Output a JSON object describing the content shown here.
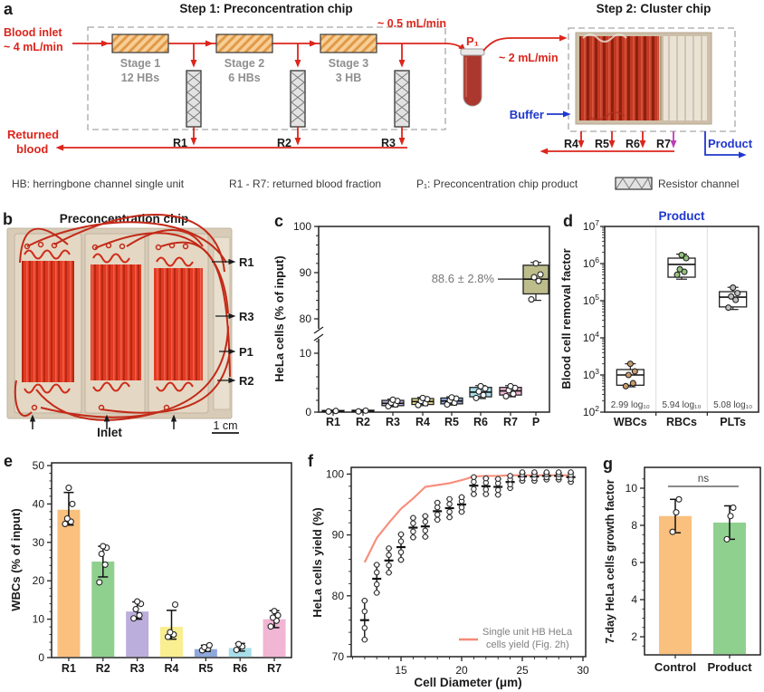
{
  "letters": {
    "a": "a",
    "b": "b",
    "c": "c",
    "d": "d",
    "e": "e",
    "f": "f",
    "g": "g"
  },
  "panel_a": {
    "step1_title": "Step 1: Preconcentration chip",
    "step2_title": "Step 2: Cluster chip",
    "blood_inlet": [
      "Blood inlet",
      "~ 4 mL/min"
    ],
    "flow_mid": "~ 0.5 mL/min",
    "p1_label": "P₁",
    "flow_p1": "~ 2 mL/min",
    "buffer_label": "Buffer",
    "product_label": "Product",
    "returned": [
      "Returned",
      "blood"
    ],
    "stages": [
      {
        "name": "Stage 1",
        "hbs": "12 HBs"
      },
      {
        "name": "Stage 2",
        "hbs": "6 HBs"
      },
      {
        "name": "Stage 3",
        "hbs": "3 HB"
      }
    ],
    "r_step1": [
      "R1",
      "R2",
      "R3"
    ],
    "r_step2": [
      "R4",
      "R5",
      "R6",
      "R7"
    ],
    "legend": {
      "hb": "HB: herringbone channel single unit",
      "r": "R1 - R7: returned blood fraction",
      "p1": "P₁: Preconcentration chip product",
      "resistor": "Resistor channel"
    }
  },
  "panel_b": {
    "title": "Preconcentration chip",
    "labels": [
      "R1",
      "R3",
      "P1",
      "R2"
    ],
    "inlet": "Inlet",
    "scalebar": "1 cm"
  },
  "chart_data": [
    {
      "id": "c",
      "type": "box",
      "ylabel": "HeLa cells (% of input)",
      "broken_axis": true,
      "ylim_lower": [
        0,
        12
      ],
      "ylim_upper": [
        78,
        100
      ],
      "yticks_lower": [
        0,
        10
      ],
      "yticks_upper": [
        80,
        90,
        100
      ],
      "categories": [
        "R1",
        "R2",
        "R3",
        "R4",
        "R5",
        "R6",
        "R7",
        "P"
      ],
      "colors": [
        "#9e9e9e",
        "#9e9e9e",
        "#BCAEDC",
        "#F2E88E",
        "#8FA8DC",
        "#A8DEEA",
        "#F0B6D4",
        "#BDBD8C"
      ],
      "boxes": [
        {
          "whislo": 0.05,
          "q1": 0.1,
          "med": 0.18,
          "q3": 0.28,
          "whishi": 0.35,
          "points": [
            0.1,
            0.2
          ]
        },
        {
          "whislo": 0.05,
          "q1": 0.1,
          "med": 0.2,
          "q3": 0.32,
          "whishi": 0.4,
          "points": [
            0.12,
            0.25
          ]
        },
        {
          "whislo": 0.9,
          "q1": 1.1,
          "med": 1.5,
          "q3": 2.0,
          "whishi": 2.2,
          "points": [
            1.0,
            1.3,
            1.6,
            1.9,
            2.1
          ]
        },
        {
          "whislo": 1.1,
          "q1": 1.3,
          "med": 1.8,
          "q3": 2.3,
          "whishi": 2.5,
          "points": [
            1.2,
            1.5,
            1.9,
            2.2,
            2.4
          ]
        },
        {
          "whislo": 1.2,
          "q1": 1.4,
          "med": 1.9,
          "q3": 2.4,
          "whishi": 2.6,
          "points": [
            1.3,
            1.6,
            2.0,
            2.3,
            2.5
          ]
        },
        {
          "whislo": 2.3,
          "q1": 2.6,
          "med": 3.4,
          "q3": 4.2,
          "whishi": 4.5,
          "points": [
            2.4,
            2.9,
            3.5,
            4.0,
            4.4
          ]
        },
        {
          "whislo": 2.6,
          "q1": 2.9,
          "med": 3.6,
          "q3": 4.2,
          "whishi": 4.5,
          "points": [
            2.7,
            3.1,
            3.7,
            4.1,
            4.4
          ]
        },
        {
          "whislo": 84.0,
          "q1": 85.4,
          "med": 88.6,
          "q3": 91.6,
          "whishi": 92.2,
          "points": [
            84.2,
            88.2,
            89.0,
            89.6,
            92.0
          ]
        }
      ],
      "annotation": {
        "text": "88.6 ± 2.8%",
        "target": "P",
        "value": 88.6
      }
    },
    {
      "id": "d",
      "type": "box-log",
      "title": "Product",
      "ylabel": "Blood cell removal factor",
      "ylim": [
        100,
        10000000
      ],
      "categories": [
        "WBCs",
        "RBCs",
        "PLTs"
      ],
      "boxes": [
        {
          "whislo": 480,
          "q1": 530,
          "med": 1000,
          "q3": 1400,
          "whishi": 2000,
          "points": [
            500,
            600,
            1000,
            1250,
            2000
          ],
          "point_color": "#C89A6A"
        },
        {
          "whislo": 380000,
          "q1": 430000,
          "med": 950000,
          "q3": 1400000,
          "whishi": 1800000,
          "points": [
            500000,
            600000,
            700000,
            1400000,
            1700000
          ],
          "point_color": "#93C47D"
        },
        {
          "whislo": 58000,
          "q1": 68000,
          "med": 125000,
          "q3": 175000,
          "whishi": 230000,
          "points": [
            65000,
            105000,
            130000,
            160000,
            225000
          ],
          "point_color": "#BFBFBF"
        }
      ],
      "annotations": [
        "2.99 log₁₀",
        "5.94 log₁₀",
        "5.08 log₁₀"
      ]
    },
    {
      "id": "e",
      "type": "bar",
      "ylabel": "WBCs (% of input)",
      "ylim": [
        0,
        50
      ],
      "yticks": [
        0,
        10,
        20,
        30,
        40,
        50
      ],
      "categories": [
        "R1",
        "R2",
        "R3",
        "R4",
        "R5",
        "R6",
        "R7"
      ],
      "values": [
        38.5,
        25,
        12,
        8,
        2.2,
        2.5,
        10
      ],
      "errors_lo": [
        34.5,
        21,
        10,
        4.8,
        1.6,
        1.7,
        7.8
      ],
      "errors_hi": [
        43,
        29,
        14.5,
        12.3,
        3.2,
        3.7,
        12.2
      ],
      "points": [
        [
          34.8,
          35.4,
          36.2,
          40,
          44.2
        ],
        [
          19.6,
          24.2,
          27,
          28.6,
          29
        ],
        [
          10.2,
          11,
          12.6,
          14,
          14.6
        ],
        [
          5.4,
          6,
          6.6,
          13.8
        ],
        [
          1.9,
          2.3,
          2.7,
          3.2
        ],
        [
          2,
          2.9,
          3.5
        ],
        [
          8.1,
          9.6,
          10.4,
          11,
          12.1
        ]
      ],
      "colors": [
        "#FAC07E",
        "#8FD08F",
        "#BCAEDC",
        "#F9EE90",
        "#8FA8DC",
        "#A8DEEA",
        "#F0B6D4"
      ]
    },
    {
      "id": "f",
      "type": "scatter",
      "xlabel": "Cell Diameter (μm)",
      "ylabel": "HeLa cells yield (%)",
      "xlim": [
        10.9,
        30.2
      ],
      "ylim": [
        70,
        100
      ],
      "xticks": [
        15,
        20,
        25,
        30
      ],
      "yticks": [
        70,
        80,
        90,
        100
      ],
      "x": [
        12,
        13,
        14,
        15,
        16,
        17,
        18,
        19,
        20,
        21,
        22,
        23,
        24,
        25,
        26,
        27,
        28,
        29
      ],
      "mean": [
        76,
        82.8,
        85.8,
        88,
        91.2,
        91.4,
        93.9,
        94.4,
        95,
        98.1,
        98,
        97.9,
        98.7,
        99.6,
        99.6,
        99.7,
        99.7,
        99.5
      ],
      "sd": [
        3.2,
        2.3,
        2.0,
        2.1,
        1.6,
        1.7,
        1.4,
        1.5,
        1.2,
        1.4,
        1.3,
        1.3,
        1.0,
        0.7,
        0.7,
        0.6,
        0.6,
        0.8
      ],
      "line": {
        "label": "Single unit HB HeLa cells yield (Fig. 2h)",
        "label_lines": [
          "Single unit HB HeLa",
          "cells yield (Fig. 2h)"
        ],
        "color": "#F58A76",
        "x": [
          12,
          13,
          14,
          15,
          16,
          17,
          18,
          19,
          20,
          21,
          22,
          23,
          24,
          25,
          26,
          27,
          28,
          29
        ],
        "y": [
          85.5,
          89.5,
          92,
          94.3,
          96,
          97.9,
          98.2,
          98.5,
          99,
          99.6,
          99.7,
          99.7,
          99.8,
          99.8,
          99.8,
          99.8,
          99.8,
          99.8
        ]
      }
    },
    {
      "id": "g",
      "type": "bar",
      "ylabel": "7-day HeLa cells growth factor",
      "ylim": [
        1,
        11.1
      ],
      "yticks": [
        2,
        4,
        6,
        8,
        10
      ],
      "categories": [
        "Control",
        "Product"
      ],
      "values": [
        8.5,
        8.15
      ],
      "errors_lo": [
        7.6,
        7.25
      ],
      "errors_hi": [
        9.4,
        9.05
      ],
      "points": [
        [
          7.65,
          8.7,
          9.4
        ],
        [
          7.25,
          8.5,
          8.95
        ]
      ],
      "colors": [
        "#FAC07E",
        "#8FD08F"
      ],
      "sig": "ns"
    }
  ]
}
